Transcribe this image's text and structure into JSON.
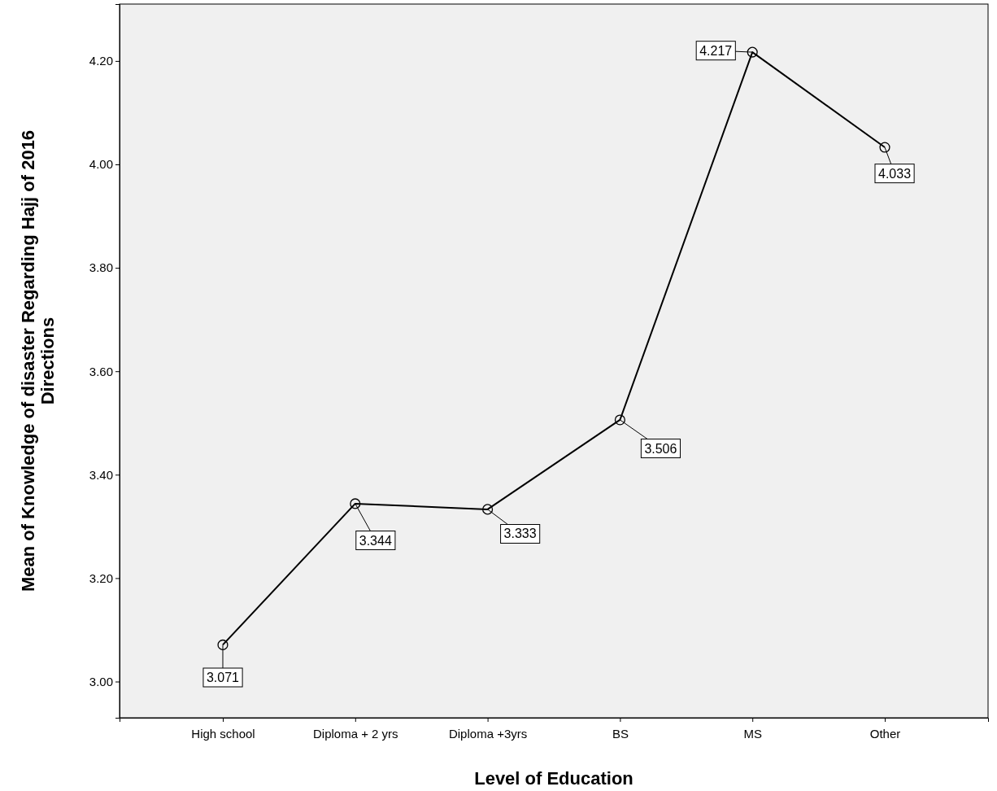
{
  "chart_data": {
    "type": "line",
    "xlabel": "Level of Education",
    "ylabel": "Mean of Knowledge of disaster Regarding Hajj of 2016 Directions",
    "categories": [
      "High school",
      "Diploma + 2 yrs",
      "Diploma +3yrs",
      "BS",
      "MS",
      "Other"
    ],
    "series": [
      {
        "color": "#000000",
        "values": [
          3.071,
          3.344,
          3.333,
          3.506,
          4.217,
          4.033
        ]
      }
    ],
    "ylim": [
      2.93,
      4.31
    ],
    "yticks": [
      {
        "value": 3,
        "label": "3.00"
      },
      {
        "value": 3.2,
        "label": "3.20"
      },
      {
        "value": 3.4,
        "label": "3.40"
      },
      {
        "value": 3.6,
        "label": "3.60"
      },
      {
        "value": 3.8,
        "label": "3.80"
      },
      {
        "value": 4,
        "label": "4.00"
      },
      {
        "value": 4.2,
        "label": "4.20"
      }
    ],
    "marker": "circle",
    "line_style": "solid",
    "data_labels": true,
    "grid": false
  }
}
